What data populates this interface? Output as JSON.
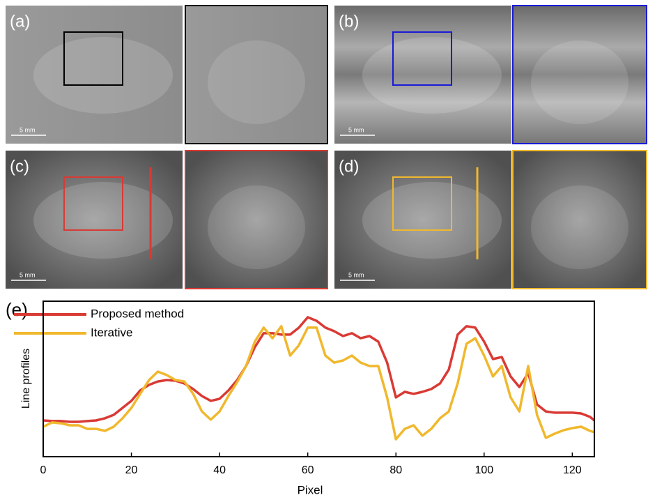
{
  "panels": [
    {
      "label": "(a)",
      "scale": "5 mm"
    },
    {
      "label": "(b)",
      "scale": "5 mm"
    },
    {
      "label": "(c)",
      "scale": "5 mm"
    },
    {
      "label": "(d)",
      "scale": "5 mm"
    }
  ],
  "chart_data": {
    "type": "line",
    "label": "(e)",
    "xlabel": "Pixel",
    "ylabel": "Line profiles",
    "x": [
      0,
      2,
      4,
      6,
      8,
      10,
      12,
      14,
      16,
      18,
      20,
      22,
      24,
      26,
      28,
      30,
      32,
      34,
      36,
      38,
      40,
      42,
      44,
      46,
      48,
      50,
      52,
      54,
      56,
      58,
      60,
      62,
      64,
      66,
      68,
      70,
      72,
      74,
      76,
      78,
      80,
      82,
      84,
      86,
      88,
      90,
      92,
      94,
      96,
      98,
      100,
      102,
      104,
      106,
      108,
      110,
      112,
      114,
      116,
      118,
      120,
      122,
      124,
      125
    ],
    "series": [
      {
        "name": "Proposed method",
        "color": "#d93a34",
        "values": [
          0.233,
          0.229,
          0.229,
          0.224,
          0.224,
          0.229,
          0.233,
          0.247,
          0.269,
          0.314,
          0.359,
          0.426,
          0.462,
          0.484,
          0.493,
          0.489,
          0.471,
          0.435,
          0.39,
          0.359,
          0.372,
          0.426,
          0.493,
          0.583,
          0.704,
          0.794,
          0.794,
          0.785,
          0.785,
          0.83,
          0.897,
          0.874,
          0.83,
          0.807,
          0.776,
          0.794,
          0.762,
          0.776,
          0.74,
          0.605,
          0.381,
          0.417,
          0.404,
          0.417,
          0.435,
          0.471,
          0.561,
          0.785,
          0.839,
          0.83,
          0.74,
          0.628,
          0.641,
          0.516,
          0.448,
          0.538,
          0.336,
          0.291,
          0.283,
          0.283,
          0.283,
          0.278,
          0.256,
          0.233
        ]
      },
      {
        "name": "Iterative",
        "color": "#f0b82d",
        "values": [
          0.193,
          0.22,
          0.215,
          0.202,
          0.202,
          0.179,
          0.179,
          0.166,
          0.193,
          0.247,
          0.314,
          0.404,
          0.493,
          0.547,
          0.525,
          0.493,
          0.484,
          0.404,
          0.291,
          0.238,
          0.291,
          0.39,
          0.48,
          0.583,
          0.74,
          0.83,
          0.762,
          0.839,
          0.65,
          0.717,
          0.83,
          0.83,
          0.65,
          0.605,
          0.619,
          0.65,
          0.605,
          0.583,
          0.583,
          0.381,
          0.112,
          0.179,
          0.202,
          0.135,
          0.179,
          0.247,
          0.291,
          0.471,
          0.726,
          0.762,
          0.65,
          0.516,
          0.583,
          0.381,
          0.291,
          0.583,
          0.269,
          0.121,
          0.148,
          0.17,
          0.184,
          0.193,
          0.166,
          0.157
        ]
      }
    ],
    "xlim": [
      0,
      125
    ],
    "xticks": [
      0,
      20,
      40,
      60,
      80,
      100,
      120
    ],
    "ylim": [
      0,
      1
    ]
  }
}
